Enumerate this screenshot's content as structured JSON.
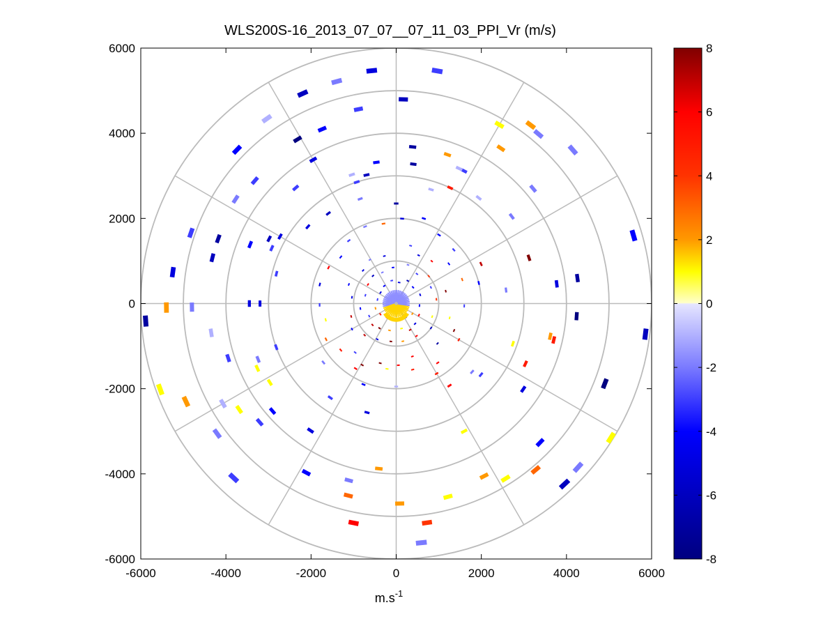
{
  "chart_data": {
    "type": "scatter",
    "title": "WLS200S-16_2013_07_07__07_11_03_PPI_Vr (m/s)",
    "xlabel": "m.s",
    "xlabel_sup": "-1",
    "ylabel": "",
    "xlim": [
      -6000,
      6000
    ],
    "ylim": [
      -6000,
      6000
    ],
    "xticks": [
      "-6000",
      "-4000",
      "-2000",
      "0",
      "2000",
      "4000",
      "6000"
    ],
    "yticks": [
      "6000",
      "4000",
      "2000",
      "0",
      "-2000",
      "-4000",
      "-6000"
    ],
    "polar_grid": {
      "rings": [
        1000,
        2000,
        3000,
        4000,
        5000,
        6000
      ],
      "spokes_deg": [
        0,
        30,
        60,
        90,
        120,
        150,
        180,
        210,
        240,
        270,
        300,
        330
      ],
      "color": "#bbbbbb"
    },
    "colorbar": {
      "min": -8,
      "max": 8,
      "ticks": [
        "8",
        "6",
        "4",
        "2",
        "0",
        "-2",
        "-4",
        "-6",
        "-8"
      ],
      "stops": [
        {
          "v": -8,
          "c": "#000080"
        },
        {
          "v": -6,
          "c": "#0000bf"
        },
        {
          "v": -4,
          "c": "#0000ff"
        },
        {
          "v": -2,
          "c": "#7a7aff"
        },
        {
          "v": 0,
          "c": "#e6e6ff"
        },
        {
          "v": 0.01,
          "c": "#ffffcc"
        },
        {
          "v": 1,
          "c": "#ffff00"
        },
        {
          "v": 2,
          "c": "#ff9900"
        },
        {
          "v": 4,
          "c": "#ff3300"
        },
        {
          "v": 6,
          "c": "#ff0000"
        },
        {
          "v": 8,
          "c": "#800000"
        }
      ]
    },
    "points": [
      {
        "r": 5550,
        "a": 80,
        "v": -3
      },
      {
        "r": 5500,
        "a": 96,
        "v": -5
      },
      {
        "r": 5400,
        "a": 105,
        "v": -2
      },
      {
        "r": 5400,
        "a": 114,
        "v": -6
      },
      {
        "r": 5300,
        "a": 125,
        "v": -1
      },
      {
        "r": 5200,
        "a": 136,
        "v": -4
      },
      {
        "r": 5100,
        "a": 161,
        "v": -3
      },
      {
        "r": 5300,
        "a": 172,
        "v": -5
      },
      {
        "r": 5900,
        "a": 184,
        "v": -7
      },
      {
        "r": 5200,
        "a": 216,
        "v": -2
      },
      {
        "r": 5600,
        "a": 227,
        "v": -3
      },
      {
        "r": 5800,
        "a": 313,
        "v": -6
      },
      {
        "r": 5750,
        "a": 318,
        "v": -2
      },
      {
        "r": 5250,
        "a": 53,
        "v": 2
      },
      {
        "r": 5200,
        "a": 50,
        "v": -2
      },
      {
        "r": 5500,
        "a": 41,
        "v": -2
      },
      {
        "r": 5800,
        "a": 16,
        "v": -4
      },
      {
        "r": 5900,
        "a": 353,
        "v": -6
      },
      {
        "r": 5250,
        "a": 339,
        "v": -8
      },
      {
        "r": 5950,
        "a": 328,
        "v": 1
      },
      {
        "r": 4800,
        "a": 88,
        "v": -6
      },
      {
        "r": 4650,
        "a": 101,
        "v": -3
      },
      {
        "r": 4450,
        "a": 113,
        "v": -4
      },
      {
        "r": 4500,
        "a": 121,
        "v": -8
      },
      {
        "r": 4400,
        "a": 139,
        "v": -3
      },
      {
        "r": 4500,
        "a": 147,
        "v": -2
      },
      {
        "r": 4450,
        "a": 160,
        "v": -7
      },
      {
        "r": 4450,
        "a": 166,
        "v": -6
      },
      {
        "r": 4800,
        "a": 181,
        "v": -2
      },
      {
        "r": 5400,
        "a": 181,
        "v": 2
      },
      {
        "r": 4400,
        "a": 189,
        "v": -1
      },
      {
        "r": 4150,
        "a": 198,
        "v": -3
      },
      {
        "r": 4700,
        "a": 210,
        "v": -1
      },
      {
        "r": 4450,
        "a": 214,
        "v": 1
      },
      {
        "r": 4250,
        "a": 221,
        "v": -3
      },
      {
        "r": 5900,
        "a": 200,
        "v": 1
      },
      {
        "r": 5450,
        "a": 205,
        "v": 2
      },
      {
        "r": 4500,
        "a": 242,
        "v": -4
      },
      {
        "r": 4650,
        "a": 256,
        "v": 3
      },
      {
        "r": 5250,
        "a": 259,
        "v": 6
      },
      {
        "r": 4700,
        "a": 271,
        "v": 2
      },
      {
        "r": 4700,
        "a": 285,
        "v": 1
      },
      {
        "r": 4550,
        "a": 297,
        "v": 2
      },
      {
        "r": 4850,
        "a": 302,
        "v": 1
      },
      {
        "r": 5100,
        "a": 310,
        "v": 3
      },
      {
        "r": 5200,
        "a": 278,
        "v": 4
      },
      {
        "r": 5650,
        "a": 276,
        "v": -2
      },
      {
        "r": 4700,
        "a": 316,
        "v": -4
      },
      {
        "r": 4200,
        "a": 40,
        "v": -2
      },
      {
        "r": 4850,
        "a": 60,
        "v": 1
      },
      {
        "r": 4400,
        "a": 56,
        "v": 2
      },
      {
        "r": 4300,
        "a": 8,
        "v": -7
      },
      {
        "r": 4250,
        "a": 356,
        "v": -8
      },
      {
        "r": 3800,
        "a": 7,
        "v": -5
      },
      {
        "r": 3700,
        "a": 84,
        "v": -7
      },
      {
        "r": 3900,
        "a": 120,
        "v": -5
      },
      {
        "r": 3600,
        "a": 131,
        "v": -3
      },
      {
        "r": 3700,
        "a": 158,
        "v": -4
      },
      {
        "r": 3350,
        "a": 153,
        "v": -6
      },
      {
        "r": 3450,
        "a": 180,
        "v": -5
      },
      {
        "r": 3850,
        "a": 221,
        "v": -4
      },
      {
        "r": 3500,
        "a": 212,
        "v": 1
      },
      {
        "r": 3600,
        "a": 205,
        "v": 1
      },
      {
        "r": 3500,
        "a": 202,
        "v": -2
      },
      {
        "r": 3600,
        "a": 236,
        "v": -5
      },
      {
        "r": 3900,
        "a": 264,
        "v": 2
      },
      {
        "r": 4300,
        "a": 255,
        "v": -2
      },
      {
        "r": 3600,
        "a": 326,
        "v": -5
      },
      {
        "r": 3800,
        "a": 347,
        "v": 5
      },
      {
        "r": 3700,
        "a": 348,
        "v": 2
      },
      {
        "r": 3300,
        "a": 19,
        "v": 8
      },
      {
        "r": 3400,
        "a": 37,
        "v": -2
      },
      {
        "r": 3500,
        "a": 63,
        "v": -3
      },
      {
        "r": 3700,
        "a": 71,
        "v": 2
      },
      {
        "r": 3500,
        "a": 65,
        "v": -1
      },
      {
        "r": 3350,
        "a": 98,
        "v": -4
      },
      {
        "r": 3100,
        "a": 103,
        "v": -6
      },
      {
        "r": 3200,
        "a": 109,
        "v": -1
      },
      {
        "r": 3300,
        "a": 83,
        "v": -7
      },
      {
        "r": 3150,
        "a": 52,
        "v": -1
      },
      {
        "r": 3000,
        "a": 108,
        "v": -3
      },
      {
        "r": 3000,
        "a": 65,
        "v": 5
      },
      {
        "r": 3400,
        "a": 298,
        "v": 1
      },
      {
        "r": 3350,
        "a": 335,
        "v": 5
      },
      {
        "r": 3150,
        "a": 150,
        "v": -5
      },
      {
        "r": 2750,
        "a": 139,
        "v": -5
      },
      {
        "r": 2650,
        "a": 127,
        "v": -6
      },
      {
        "r": 2600,
        "a": 109,
        "v": -2
      },
      {
        "r": 2350,
        "a": 90,
        "v": -7
      },
      {
        "r": 2700,
        "a": 235,
        "v": -3
      },
      {
        "r": 2900,
        "a": 341,
        "v": 1
      },
      {
        "r": 3000,
        "a": 200,
        "v": -3
      },
      {
        "r": 2800,
        "a": 73,
        "v": -1
      },
      {
        "r": 2650,
        "a": 255,
        "v": -5
      },
      {
        "r": 2400,
        "a": 318,
        "v": -2
      },
      {
        "r": 2300,
        "a": 303,
        "v": 6
      },
      {
        "r": 2200,
        "a": 25,
        "v": 7
      },
      {
        "r": 2200,
        "a": 219,
        "v": -2
      },
      {
        "r": 2000,
        "a": 14,
        "v": -4
      },
      {
        "r": 2600,
        "a": 7,
        "v": -2
      },
      {
        "r": 3200,
        "a": 180,
        "v": -5
      },
      {
        "r": 2600,
        "a": 320,
        "v": -3
      },
      {
        "r": 2900,
        "a": 166,
        "v": -3
      },
      {
        "r": 3200,
        "a": 156,
        "v": -3
      },
      {
        "r": 1950,
        "a": 270,
        "v": -1
      },
      {
        "r": 2050,
        "a": 248,
        "v": -4
      },
      {
        "r": 1800,
        "a": 238,
        "v": 6
      },
      {
        "r": 1650,
        "a": 241,
        "v": 8
      },
      {
        "r": 1500,
        "a": 230,
        "v": -3
      },
      {
        "r": 1700,
        "a": 305,
        "v": 6
      },
      {
        "r": 1900,
        "a": 300,
        "v": 5
      },
      {
        "r": 1700,
        "a": 330,
        "v": 5
      },
      {
        "r": 1500,
        "a": 335,
        "v": 8
      },
      {
        "r": 1600,
        "a": 358,
        "v": -3
      },
      {
        "r": 1650,
        "a": 20,
        "v": 3
      },
      {
        "r": 1550,
        "a": 37,
        "v": -4
      },
      {
        "r": 1850,
        "a": 43,
        "v": -3
      },
      {
        "r": 1900,
        "a": 58,
        "v": -4
      },
      {
        "r": 2100,
        "a": 72,
        "v": -4
      },
      {
        "r": 2000,
        "a": 86,
        "v": -5
      },
      {
        "r": 1900,
        "a": 99,
        "v": 3
      },
      {
        "r": 1950,
        "a": 112,
        "v": -2
      },
      {
        "r": 1850,
        "a": 127,
        "v": -3
      },
      {
        "r": 1700,
        "a": 140,
        "v": -4
      },
      {
        "r": 1800,
        "a": 152,
        "v": 6
      },
      {
        "r": 1850,
        "a": 166,
        "v": -5
      },
      {
        "r": 1800,
        "a": 181,
        "v": -3
      },
      {
        "r": 1700,
        "a": 193,
        "v": 1
      },
      {
        "r": 1850,
        "a": 207,
        "v": 3
      },
      {
        "r": 1700,
        "a": 220,
        "v": 5
      },
      {
        "r": 1550,
        "a": 262,
        "v": 1
      },
      {
        "r": 1600,
        "a": 284,
        "v": 5
      },
      {
        "r": 1450,
        "a": 272,
        "v": 6
      },
      {
        "r": 1450,
        "a": 255,
        "v": 8
      },
      {
        "r": 1300,
        "a": 287,
        "v": 6
      },
      {
        "r": 1350,
        "a": 316,
        "v": -7
      },
      {
        "r": 1300,
        "a": 345,
        "v": 1
      },
      {
        "r": 1200,
        "a": 14,
        "v": 8
      },
      {
        "r": 1300,
        "a": 50,
        "v": 6
      },
      {
        "r": 1250,
        "a": 65,
        "v": -5
      },
      {
        "r": 1400,
        "a": 76,
        "v": -3
      },
      {
        "r": 1150,
        "a": 104,
        "v": -5
      },
      {
        "r": 1200,
        "a": 121,
        "v": -2
      },
      {
        "r": 1100,
        "a": 135,
        "v": -5
      },
      {
        "r": 1200,
        "a": 158,
        "v": -4
      },
      {
        "r": 1050,
        "a": 172,
        "v": -5
      },
      {
        "r": 1100,
        "a": 196,
        "v": 7
      },
      {
        "r": 1200,
        "a": 210,
        "v": -4
      },
      {
        "r": 1050,
        "a": 225,
        "v": 7
      },
      {
        "r": 950,
        "a": 242,
        "v": -5
      },
      {
        "r": 900,
        "a": 262,
        "v": 8
      },
      {
        "r": 900,
        "a": 280,
        "v": 2
      },
      {
        "r": 900,
        "a": 302,
        "v": 6
      },
      {
        "r": 1000,
        "a": 325,
        "v": -6
      },
      {
        "r": 900,
        "a": 340,
        "v": 1
      },
      {
        "r": 950,
        "a": 6,
        "v": 4
      },
      {
        "r": 900,
        "a": 25,
        "v": -3
      },
      {
        "r": 1000,
        "a": 40,
        "v": 4
      },
      {
        "r": 850,
        "a": 55,
        "v": -3
      },
      {
        "r": 950,
        "a": 73,
        "v": -2
      },
      {
        "r": 850,
        "a": 95,
        "v": -4
      },
      {
        "r": 800,
        "a": 114,
        "v": -2
      },
      {
        "r": 850,
        "a": 130,
        "v": -6
      },
      {
        "r": 800,
        "a": 146,
        "v": 6
      },
      {
        "r": 750,
        "a": 165,
        "v": -3
      },
      {
        "r": 850,
        "a": 188,
        "v": -4
      },
      {
        "r": 700,
        "a": 205,
        "v": -3
      },
      {
        "r": 750,
        "a": 222,
        "v": 7
      },
      {
        "r": 700,
        "a": 236,
        "v": 8
      },
      {
        "r": 650,
        "a": 256,
        "v": 2
      },
      {
        "r": 600,
        "a": 282,
        "v": 1
      },
      {
        "r": 700,
        "a": 298,
        "v": 7
      },
      {
        "r": 650,
        "a": 313,
        "v": -5
      },
      {
        "r": 600,
        "a": 333,
        "v": 6
      },
      {
        "r": 550,
        "a": 355,
        "v": -4
      },
      {
        "r": 600,
        "a": 20,
        "v": -5
      },
      {
        "r": 550,
        "a": 44,
        "v": -4
      },
      {
        "r": 600,
        "a": 63,
        "v": -6
      },
      {
        "r": 500,
        "a": 82,
        "v": -5
      },
      {
        "r": 550,
        "a": 101,
        "v": -3
      },
      {
        "r": 500,
        "a": 124,
        "v": -4
      },
      {
        "r": 450,
        "a": 145,
        "v": -5
      },
      {
        "r": 450,
        "a": 168,
        "v": -3
      },
      {
        "r": 500,
        "a": 193,
        "v": 2
      },
      {
        "r": 450,
        "a": 214,
        "v": 5
      },
      {
        "r": 400,
        "a": 237,
        "v": 6
      },
      {
        "r": 400,
        "a": 261,
        "v": 1
      },
      {
        "r": 400,
        "a": 304,
        "v": -4
      },
      {
        "r": 450,
        "a": 328,
        "v": 2
      }
    ],
    "core": {
      "r0": 40,
      "r1": 320,
      "color_blue": "#8f8fff",
      "color_yellow": "#ffd400"
    }
  }
}
